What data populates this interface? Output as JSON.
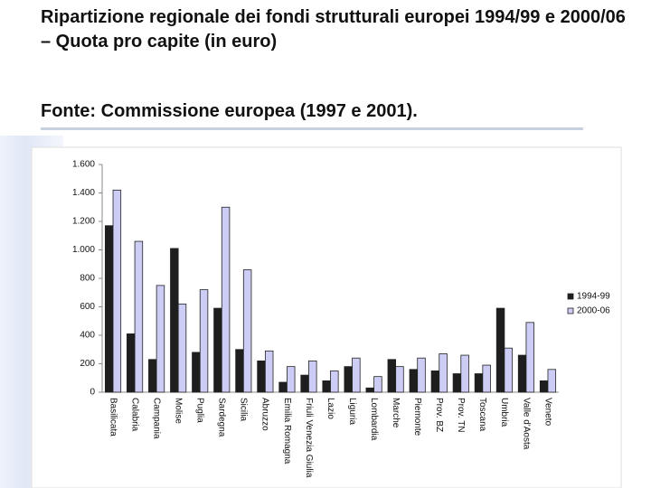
{
  "header": {
    "title": "Ripartizione regionale dei fondi strutturali europei 1994/99 e 2000/06 – Quota pro capite (in euro)",
    "source": "Fonte: Commissione europea (1997 e 2001)."
  },
  "chart_data": {
    "type": "bar",
    "categories": [
      "Basilicata",
      "Calabria",
      "Campania",
      "Molise",
      "Puglia",
      "Sardegna",
      "Sicilia",
      "Abruzzo",
      "Emilia Romagna",
      "Friuli Venezia Giulia",
      "Lazio",
      "Liguria",
      "Lombardia",
      "Marche",
      "Piemonte",
      "Prov. BZ",
      "Prov. TN",
      "Toscana",
      "Umbria",
      "Valle d'Aosta",
      "Veneto"
    ],
    "series": [
      {
        "name": "1994-99",
        "color": "#1e1e1e",
        "values": [
          1170,
          410,
          230,
          1010,
          280,
          590,
          300,
          220,
          70,
          120,
          80,
          180,
          30,
          230,
          160,
          150,
          130,
          130,
          590,
          260,
          80
        ]
      },
      {
        "name": "2000-06",
        "color": "#ccccf4",
        "values": [
          1420,
          1060,
          750,
          620,
          720,
          1300,
          860,
          290,
          180,
          220,
          150,
          240,
          110,
          180,
          240,
          270,
          260,
          190,
          310,
          490,
          160
        ]
      }
    ],
    "ylim": [
      0,
      1600
    ],
    "yticks": [
      0,
      200,
      400,
      600,
      800,
      {
        "value": 1000,
        "label": "1.000"
      },
      {
        "value": 1200,
        "label": "1.200"
      },
      {
        "value": 1400,
        "label": "1.400"
      },
      {
        "value": 1600,
        "label": "1.600"
      }
    ],
    "legend": "right"
  }
}
